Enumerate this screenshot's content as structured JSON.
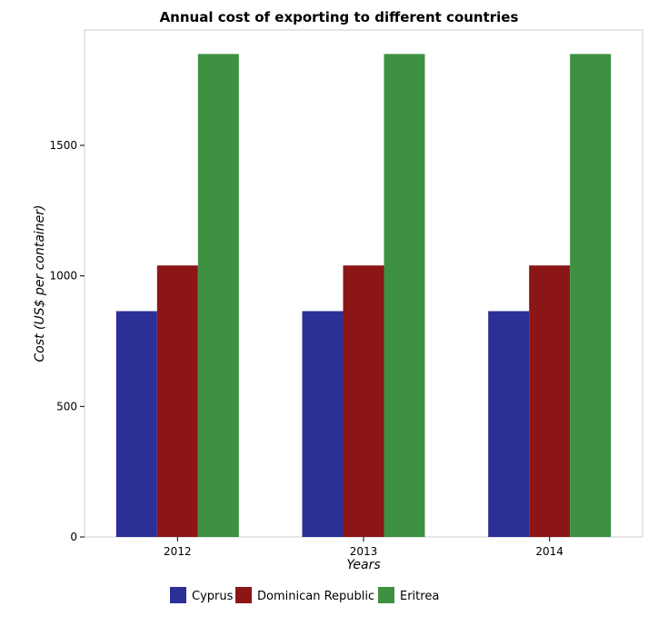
{
  "chart_data": {
    "type": "bar",
    "title": "Annual cost of exporting to different countries",
    "xlabel": "Years",
    "ylabel": "Cost (US$ per container)",
    "categories": [
      "2012",
      "2013",
      "2014"
    ],
    "series": [
      {
        "name": "Cyprus",
        "color": "#2b2f96",
        "values": [
          865,
          865,
          865
        ]
      },
      {
        "name": "Dominican Republic",
        "color": "#8c1616",
        "values": [
          1040,
          1040,
          1040
        ]
      },
      {
        "name": "Eritrea",
        "color": "#3d9140",
        "values": [
          1850,
          1850,
          1850
        ]
      }
    ],
    "ylim": [
      0,
      1942
    ],
    "yticks": [
      0,
      500,
      1000,
      1500
    ],
    "grid": false,
    "legend": "bottom-center"
  }
}
